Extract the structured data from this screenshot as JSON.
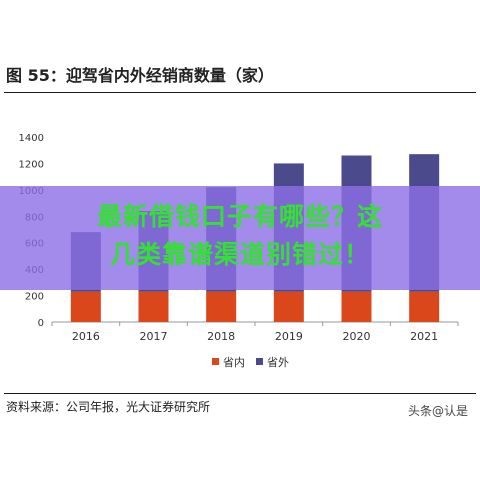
{
  "figure": {
    "title": "图 55：迎驾省内外经销商数量（家）",
    "source": "资料来源：公司年报，光大证券研究所",
    "watermark": "头条@认是"
  },
  "overlay": {
    "line1": "最新借钱口子有哪些？这",
    "line2": "几类靠谱渠道别错过！",
    "color": "#8c6ee6"
  },
  "chart_data": {
    "type": "bar",
    "stacked": true,
    "categories": [
      "2016",
      "2017",
      "2018",
      "2019",
      "2020",
      "2021"
    ],
    "series": [
      {
        "name": "省内",
        "color": "#d9471a",
        "values": [
          230,
          230,
          230,
          230,
          230,
          230
        ]
      },
      {
        "name": "省外",
        "color": "#4b4a8c",
        "values": [
          450,
          610,
          790,
          970,
          1030,
          1040
        ]
      }
    ],
    "yticks": [
      0,
      200,
      400,
      600,
      800,
      1000,
      1200,
      1400
    ],
    "ylim": [
      0,
      1400
    ],
    "grid": false,
    "legend": "bottom-center"
  }
}
